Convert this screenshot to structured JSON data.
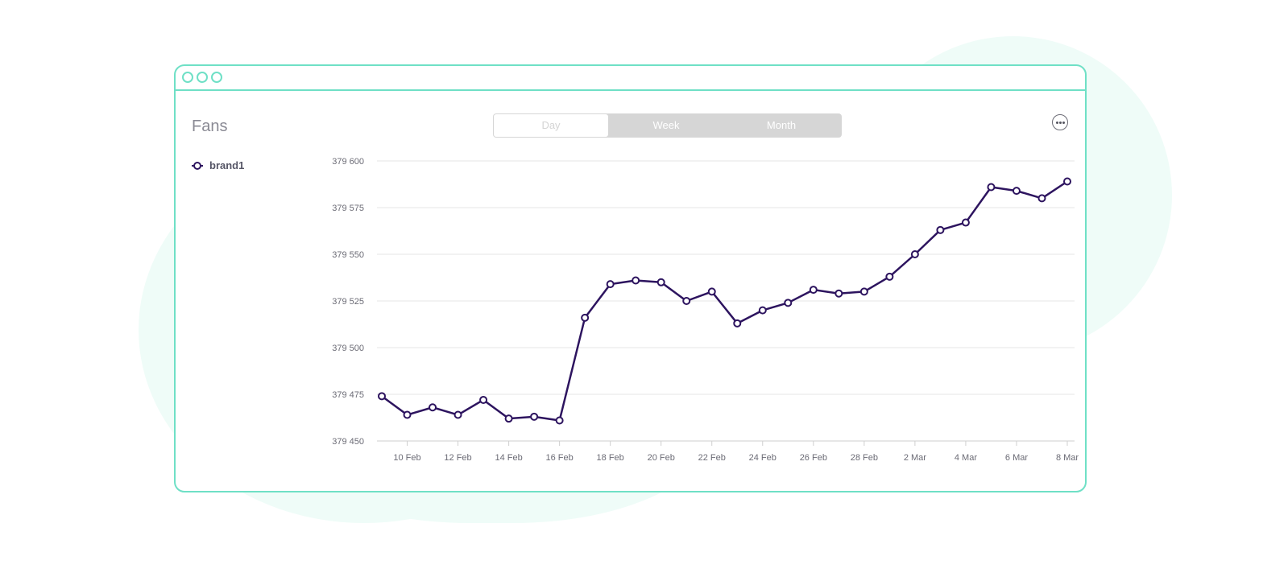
{
  "panel": {
    "title": "Fans",
    "period_tabs": [
      "Day",
      "Week",
      "Month"
    ],
    "more_icon": "more-horizontal-icon"
  },
  "legend": {
    "label": "brand1",
    "color": "#2d145f"
  },
  "colors": {
    "accent": "#6fe0c6",
    "line": "#2d145f",
    "grid": "#e6e6e6",
    "segment": "#d6d6d6"
  },
  "chart_data": {
    "type": "line",
    "x": [
      "9 Feb",
      "10 Feb",
      "11 Feb",
      "12 Feb",
      "13 Feb",
      "14 Feb",
      "15 Feb",
      "16 Feb",
      "17 Feb",
      "18 Feb",
      "19 Feb",
      "20 Feb",
      "21 Feb",
      "22 Feb",
      "23 Feb",
      "24 Feb",
      "25 Feb",
      "26 Feb",
      "27 Feb",
      "28 Feb",
      "1 Mar",
      "2 Mar",
      "3 Mar",
      "4 Mar",
      "5 Mar",
      "6 Mar",
      "7 Mar",
      "8 Mar"
    ],
    "x_tick_labels": [
      "10 Feb",
      "12 Feb",
      "14 Feb",
      "16 Feb",
      "18 Feb",
      "20 Feb",
      "22 Feb",
      "24 Feb",
      "26 Feb",
      "28 Feb",
      "2 Mar",
      "4 Mar",
      "6 Mar",
      "8 Mar"
    ],
    "series": [
      {
        "name": "brand1",
        "values": [
          379474,
          379464,
          379468,
          379464,
          379472,
          379462,
          379463,
          379461,
          379516,
          379534,
          379536,
          379535,
          379525,
          379530,
          379513,
          379520,
          379524,
          379531,
          379529,
          379530,
          379538,
          379550,
          379563,
          379567,
          379586,
          379584,
          379580,
          379589
        ]
      }
    ],
    "y_tick_labels": [
      "379 600",
      "379 575",
      "379 550",
      "379 525",
      "379 500",
      "379 475",
      "379 450"
    ],
    "ylim": [
      379450,
      379600
    ],
    "grid": true,
    "legend_position": "left"
  }
}
